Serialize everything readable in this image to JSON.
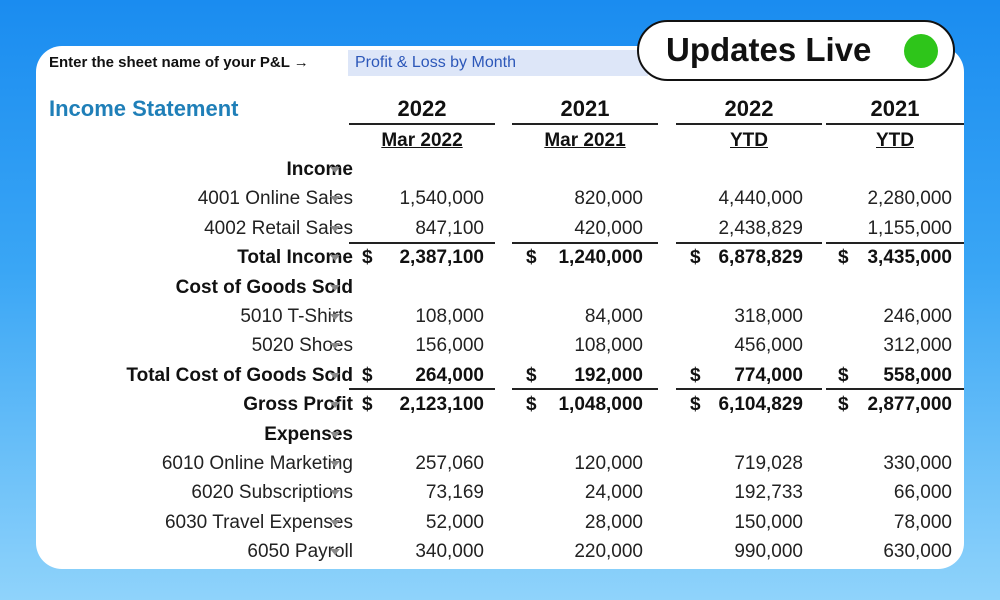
{
  "badge": {
    "text": "Updates Live",
    "status_color": "#2ec51a"
  },
  "prompt": {
    "label": "Enter the sheet name of your P&L →",
    "value": "Profit & Loss by Month"
  },
  "title": "Income Statement",
  "columns": [
    {
      "year": "2022",
      "period": "Mar 2022"
    },
    {
      "year": "2021",
      "period": "Mar 2021"
    },
    {
      "year": "2022",
      "period": "YTD"
    },
    {
      "year": "2021",
      "period": "YTD"
    }
  ],
  "rows": [
    {
      "label": "Income",
      "values": [
        "",
        "",
        "",
        ""
      ]
    },
    {
      "label": "4001 Online Sales",
      "values": [
        "1,540,000",
        "820,000",
        "4,440,000",
        "2,280,000"
      ]
    },
    {
      "label": "4002 Retail Sales",
      "values": [
        "847,100",
        "420,000",
        "2,438,829",
        "1,155,000"
      ]
    },
    {
      "label": "Total Income",
      "values": [
        "2,387,100",
        "1,240,000",
        "6,878,829",
        "3,435,000"
      ]
    },
    {
      "label": "Cost of Goods Sold",
      "values": [
        "",
        "",
        "",
        ""
      ]
    },
    {
      "label": "5010 T-Shirts",
      "values": [
        "108,000",
        "84,000",
        "318,000",
        "246,000"
      ]
    },
    {
      "label": "5020 Shoes",
      "values": [
        "156,000",
        "108,000",
        "456,000",
        "312,000"
      ]
    },
    {
      "label": "Total Cost of Goods Sold",
      "values": [
        "264,000",
        "192,000",
        "774,000",
        "558,000"
      ]
    },
    {
      "label": "Gross Profit",
      "values": [
        "2,123,100",
        "1,048,000",
        "6,104,829",
        "2,877,000"
      ]
    },
    {
      "label": "Expenses",
      "values": [
        "",
        "",
        "",
        ""
      ]
    },
    {
      "label": "6010 Online Marketing",
      "values": [
        "257,060",
        "120,000",
        "719,028",
        "330,000"
      ]
    },
    {
      "label": "6020 Subscriptions",
      "values": [
        "73,169",
        "24,000",
        "192,733",
        "66,000"
      ]
    },
    {
      "label": "6030 Travel Expenses",
      "values": [
        "52,000",
        "28,000",
        "150,000",
        "78,000"
      ]
    },
    {
      "label": "6050 Payroll",
      "values": [
        "340,000",
        "220,000",
        "990,000",
        "630,000"
      ]
    }
  ],
  "currency_symbol": "$"
}
